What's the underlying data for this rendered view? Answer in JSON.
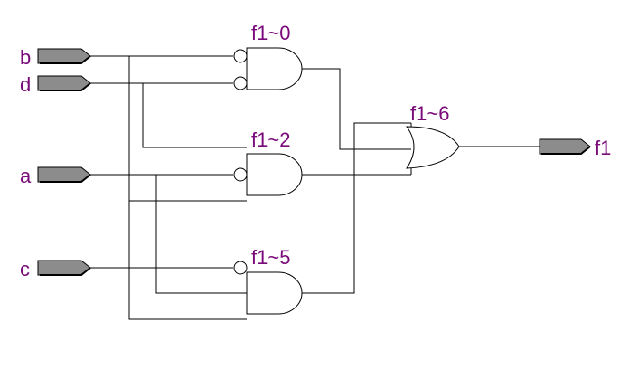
{
  "colors": {
    "label": "#7a0a7a",
    "wire": "#000000",
    "port_fill": "#8c8c8c",
    "background": "#ffffff"
  },
  "inputs": {
    "b": "b",
    "d": "d",
    "a": "a",
    "c": "c"
  },
  "outputs": {
    "f1": "f1"
  },
  "gates": {
    "and0": {
      "type": "AND",
      "label": "f1~0",
      "inverted_inputs": 2
    },
    "and2": {
      "type": "AND",
      "label": "f1~2",
      "inverted_inputs": 1
    },
    "and5": {
      "type": "AND",
      "label": "f1~5",
      "inverted_inputs": 1
    },
    "or6": {
      "type": "OR",
      "label": "f1~6",
      "inverted_inputs": 0
    }
  }
}
